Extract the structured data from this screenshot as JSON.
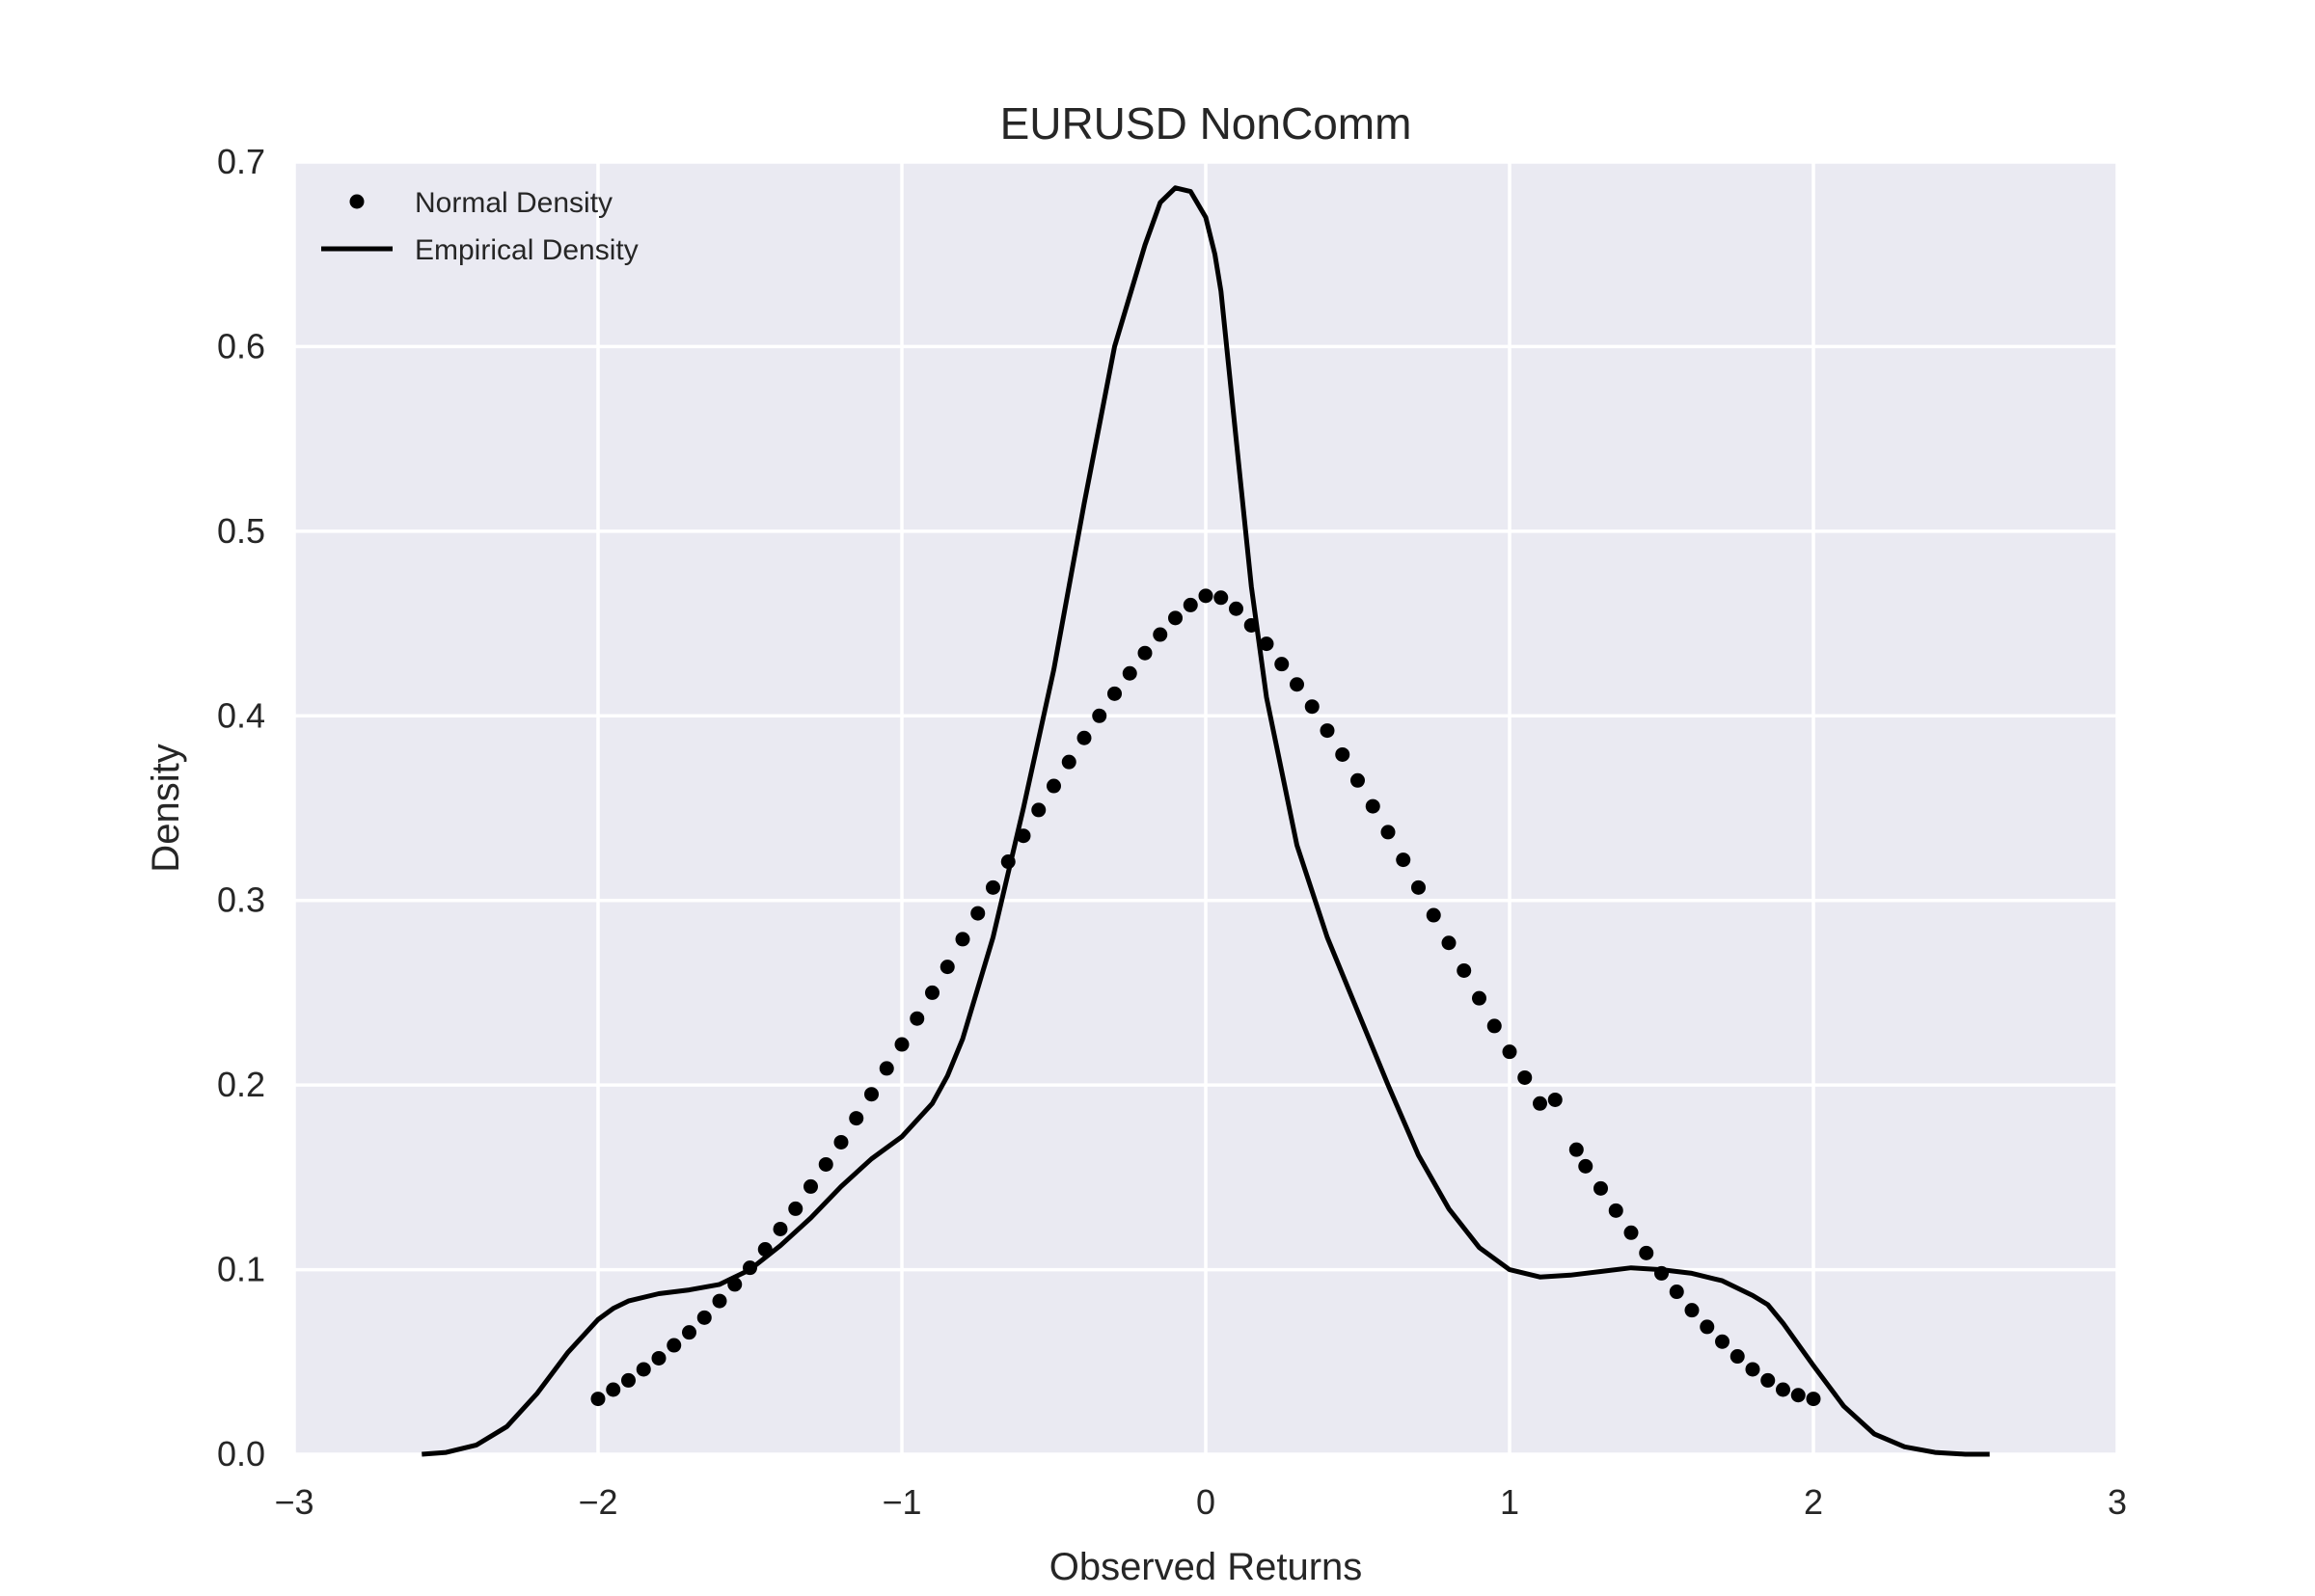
{
  "chart_data": {
    "type": "line",
    "title": "EURUSD NonComm",
    "xlabel": "Observed Returns",
    "ylabel": "Density",
    "xlim": [
      -3,
      3
    ],
    "ylim": [
      0,
      0.7
    ],
    "x_ticks": [
      -3,
      -2,
      -1,
      0,
      1,
      2,
      3
    ],
    "x_tick_labels": [
      "−3",
      "−2",
      "−1",
      "0",
      "1",
      "2",
      "3"
    ],
    "y_ticks": [
      0.0,
      0.1,
      0.2,
      0.3,
      0.4,
      0.5,
      0.6,
      0.7
    ],
    "y_tick_labels": [
      "0.0",
      "0.1",
      "0.2",
      "0.3",
      "0.4",
      "0.5",
      "0.6",
      "0.7"
    ],
    "grid": true,
    "background_color": "#eaeaf2",
    "grid_color": "#ffffff",
    "legend_position": "top-left",
    "series": [
      {
        "name": "Normal Density",
        "style": "dots",
        "color": "#000000",
        "x": [
          -2.0,
          -1.95,
          -1.9,
          -1.85,
          -1.8,
          -1.75,
          -1.7,
          -1.65,
          -1.6,
          -1.55,
          -1.5,
          -1.45,
          -1.4,
          -1.35,
          -1.3,
          -1.25,
          -1.2,
          -1.15,
          -1.1,
          -1.05,
          -1.0,
          -0.95,
          -0.9,
          -0.85,
          -0.8,
          -0.75,
          -0.7,
          -0.65,
          -0.6,
          -0.55,
          -0.5,
          -0.45,
          -0.4,
          -0.35,
          -0.3,
          -0.25,
          -0.2,
          -0.15,
          -0.1,
          -0.05,
          0.0,
          0.05,
          0.1,
          0.15,
          0.2,
          0.25,
          0.3,
          0.35,
          0.4,
          0.45,
          0.5,
          0.55,
          0.6,
          0.65,
          0.7,
          0.75,
          0.8,
          0.85,
          0.9,
          0.95,
          1.0,
          1.05,
          1.1,
          1.15,
          1.22,
          1.25,
          1.3,
          1.35,
          1.4,
          1.45,
          1.5,
          1.55,
          1.6,
          1.65,
          1.7,
          1.75,
          1.8,
          1.85,
          1.9,
          1.95,
          2.0
        ],
        "y": [
          0.03,
          0.035,
          0.04,
          0.046,
          0.052,
          0.059,
          0.066,
          0.074,
          0.083,
          0.092,
          0.101,
          0.111,
          0.122,
          0.133,
          0.145,
          0.157,
          0.169,
          0.182,
          0.195,
          0.209,
          0.222,
          0.236,
          0.25,
          0.264,
          0.279,
          0.293,
          0.307,
          0.321,
          0.335,
          0.349,
          0.362,
          0.375,
          0.388,
          0.4,
          0.412,
          0.423,
          0.434,
          0.444,
          0.453,
          0.46,
          0.465,
          0.464,
          0.458,
          0.449,
          0.439,
          0.428,
          0.417,
          0.405,
          0.392,
          0.379,
          0.365,
          0.351,
          0.337,
          0.322,
          0.307,
          0.292,
          0.277,
          0.262,
          0.247,
          0.232,
          0.218,
          0.204,
          0.19,
          0.192,
          0.165,
          0.156,
          0.144,
          0.132,
          0.12,
          0.109,
          0.098,
          0.088,
          0.078,
          0.069,
          0.061,
          0.053,
          0.046,
          0.04,
          0.035,
          0.032,
          0.03
        ]
      },
      {
        "name": "Empirical Density",
        "style": "line",
        "color": "#000000",
        "x": [
          -2.58,
          -2.5,
          -2.4,
          -2.3,
          -2.2,
          -2.1,
          -2.0,
          -1.95,
          -1.9,
          -1.8,
          -1.7,
          -1.6,
          -1.5,
          -1.4,
          -1.3,
          -1.2,
          -1.1,
          -1.0,
          -0.9,
          -0.85,
          -0.8,
          -0.7,
          -0.6,
          -0.5,
          -0.4,
          -0.3,
          -0.2,
          -0.15,
          -0.1,
          -0.05,
          0.0,
          0.03,
          0.05,
          0.1,
          0.15,
          0.2,
          0.3,
          0.4,
          0.5,
          0.6,
          0.7,
          0.8,
          0.9,
          1.0,
          1.1,
          1.2,
          1.3,
          1.4,
          1.5,
          1.6,
          1.7,
          1.8,
          1.85,
          1.9,
          2.0,
          2.1,
          2.2,
          2.3,
          2.4,
          2.5,
          2.58
        ],
        "y": [
          0.0,
          0.001,
          0.005,
          0.015,
          0.033,
          0.055,
          0.073,
          0.079,
          0.083,
          0.087,
          0.089,
          0.092,
          0.1,
          0.113,
          0.128,
          0.145,
          0.16,
          0.172,
          0.19,
          0.205,
          0.225,
          0.28,
          0.35,
          0.425,
          0.515,
          0.6,
          0.655,
          0.678,
          0.686,
          0.684,
          0.67,
          0.65,
          0.63,
          0.55,
          0.47,
          0.41,
          0.33,
          0.28,
          0.24,
          0.2,
          0.162,
          0.133,
          0.112,
          0.1,
          0.096,
          0.097,
          0.099,
          0.101,
          0.1,
          0.098,
          0.094,
          0.086,
          0.081,
          0.071,
          0.048,
          0.026,
          0.011,
          0.004,
          0.001,
          0.0,
          0.0
        ]
      }
    ]
  }
}
